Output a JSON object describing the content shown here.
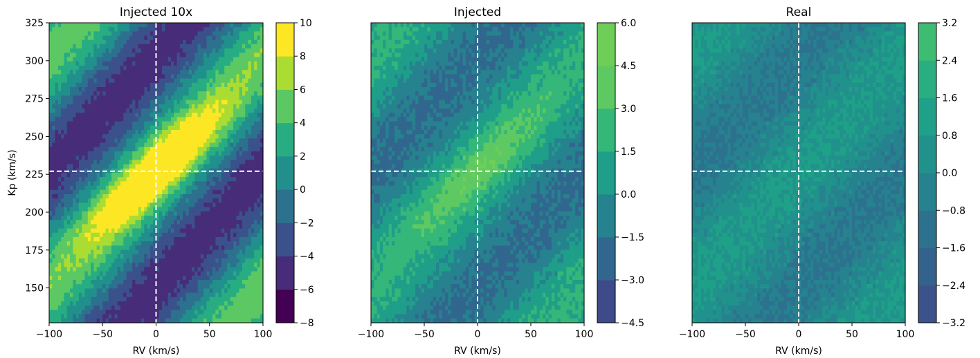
{
  "chart_data": [
    {
      "type": "heatmap",
      "title": "Injected 10x",
      "xlabel": "RV (km/s)",
      "ylabel": "Kp (km/s)",
      "xlim": [
        -100,
        100
      ],
      "ylim": [
        127,
        325
      ],
      "xticks": [
        -100,
        -50,
        0,
        50,
        100
      ],
      "xtick_labels": [
        "−100",
        "−50",
        "0",
        "50",
        "100"
      ],
      "yticks": [
        150,
        175,
        200,
        225,
        250,
        275,
        300,
        325
      ],
      "ytick_labels": [
        "150",
        "175",
        "200",
        "225",
        "250",
        "275",
        "300",
        "325"
      ],
      "crosshair": {
        "rv": 0,
        "kp": 227
      },
      "signal": {
        "amplitude": 9.3,
        "band_amplitude": 5.2,
        "noise": 0.8,
        "seed": 11
      },
      "colorbar": {
        "levels": [
          -8,
          -6,
          -4,
          -2,
          0,
          2,
          4,
          6,
          8,
          10
        ],
        "tick_labels": [
          "−8",
          "−6",
          "−4",
          "−2",
          "0",
          "2",
          "4",
          "6",
          "8",
          "10"
        ],
        "colors": [
          "#440154",
          "#472c7a",
          "#3b518b",
          "#2c718e",
          "#21908d",
          "#27ad81",
          "#5cc863",
          "#aadc32",
          "#fde725"
        ]
      }
    },
    {
      "type": "heatmap",
      "title": "Injected",
      "xlabel": "RV (km/s)",
      "ylabel": "",
      "xlim": [
        -100,
        100
      ],
      "ylim": [
        127,
        325
      ],
      "xticks": [
        -100,
        -50,
        0,
        50,
        100
      ],
      "xtick_labels": [
        "−100",
        "−50",
        "0",
        "50",
        "100"
      ],
      "yticks": [],
      "ytick_labels": [],
      "crosshair": {
        "rv": 0,
        "kp": 227
      },
      "signal": {
        "amplitude": 2.4,
        "band_amplitude": 1.9,
        "noise": 0.75,
        "seed": 23
      },
      "colorbar": {
        "levels": [
          -4.5,
          -3.0,
          -1.5,
          0.0,
          1.5,
          3.0,
          4.5,
          6.0
        ],
        "tick_labels": [
          "−4.5",
          "−3.0",
          "−1.5",
          "0.0",
          "1.5",
          "3.0",
          "4.5",
          "6.0"
        ],
        "colors": [
          "#3e4a89",
          "#31678e",
          "#26828e",
          "#1f9e89",
          "#35b779",
          "#5ec962",
          "#6ece58"
        ]
      }
    },
    {
      "type": "heatmap",
      "title": "Real",
      "xlabel": "RV (km/s)",
      "ylabel": "",
      "xlim": [
        -100,
        100
      ],
      "ylim": [
        127,
        325
      ],
      "xticks": [
        -100,
        -50,
        0,
        50,
        100
      ],
      "xtick_labels": [
        "−100",
        "−50",
        "0",
        "50",
        "100"
      ],
      "yticks": [],
      "ytick_labels": [],
      "crosshair": {
        "rv": 0,
        "kp": 227
      },
      "signal": {
        "amplitude": 0.0,
        "band_amplitude": 0.9,
        "noise": 0.55,
        "seed": 37
      },
      "colorbar": {
        "levels": [
          -3.2,
          -2.4,
          -1.6,
          -0.8,
          0.0,
          0.8,
          1.6,
          2.4,
          3.2
        ],
        "tick_labels": [
          "−3.2",
          "−2.4",
          "−1.6",
          "−0.8",
          "0.0",
          "0.8",
          "1.6",
          "2.4",
          "3.2"
        ],
        "colors": [
          "#3b528b",
          "#33638d",
          "#2c728e",
          "#26828e",
          "#21918c",
          "#1fa088",
          "#28ae80",
          "#3fbc73"
        ]
      }
    }
  ]
}
